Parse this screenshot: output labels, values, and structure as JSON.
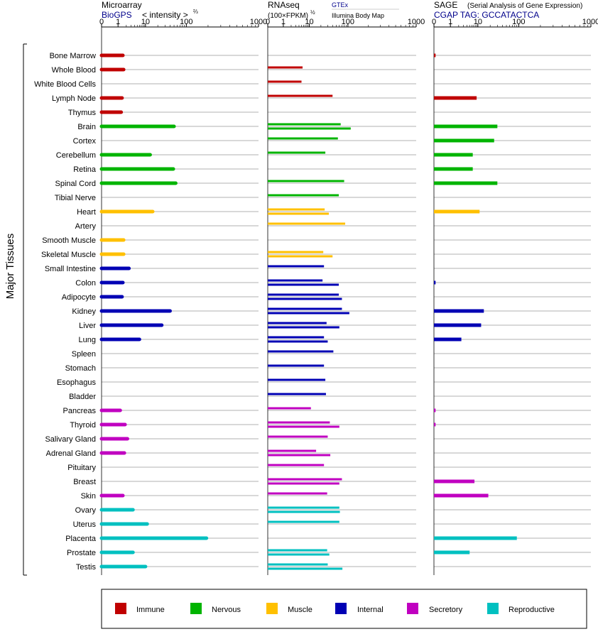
{
  "chart_data": {
    "type": "bar",
    "orientation": "horizontal",
    "y_axis_label": "Major Tissues",
    "scale": "log",
    "ticks": [
      0,
      1,
      10,
      100,
      1000
    ],
    "tissues": [
      "Bone Marrow",
      "Whole Blood",
      "White Blood Cells",
      "Lymph Node",
      "Thymus",
      "Brain",
      "Cortex",
      "Cerebellum",
      "Retina",
      "Spinal Cord",
      "Tibial Nerve",
      "Heart",
      "Artery",
      "Smooth Muscle",
      "Skeletal Muscle",
      "Small Intestine",
      "Colon",
      "Adipocyte",
      "Kidney",
      "Liver",
      "Lung",
      "Spleen",
      "Stomach",
      "Esophagus",
      "Bladder",
      "Pancreas",
      "Thyroid",
      "Salivary Gland",
      "Adrenal Gland",
      "Pituitary",
      "Breast",
      "Skin",
      "Ovary",
      "Uterus",
      "Placenta",
      "Prostate",
      "Testis"
    ],
    "tissue_groups": [
      "Immune",
      "Immune",
      "Immune",
      "Immune",
      "Immune",
      "Nervous",
      "Nervous",
      "Nervous",
      "Nervous",
      "Nervous",
      "Nervous",
      "Muscle",
      "Muscle",
      "Muscle",
      "Muscle",
      "Internal",
      "Internal",
      "Internal",
      "Internal",
      "Internal",
      "Internal",
      "Internal",
      "Internal",
      "Internal",
      "Internal",
      "Secretory",
      "Secretory",
      "Secretory",
      "Secretory",
      "Secretory",
      "Secretory",
      "Secretory",
      "Reproductive",
      "Reproductive",
      "Reproductive",
      "Reproductive",
      "Reproductive"
    ],
    "group_colors": {
      "Immune": "#c00000",
      "Nervous": "#00b400",
      "Muscle": "#ffc000",
      "Internal": "#0000b4",
      "Secretory": "#c000c0",
      "Reproductive": "#00c0c0"
    },
    "panels": [
      {
        "title": "Microarray",
        "subtitle": "BioGPS",
        "unit": "< intensity >",
        "unit_exp": "⅔",
        "values": [
          1.5,
          1.6,
          null,
          1.4,
          1.3,
          50,
          null,
          13,
          48,
          55,
          null,
          15,
          null,
          1.6,
          1.6,
          2.5,
          1.5,
          1.4,
          40,
          25,
          6,
          null,
          null,
          null,
          null,
          1.2,
          1.8,
          2.2,
          1.7,
          null,
          null,
          1.5,
          3.5,
          11,
          190,
          3.5,
          10
        ]
      },
      {
        "title": "RNAseq",
        "unit": "(100×FPKM)",
        "unit_exp": "½",
        "sources": [
          "GTEx",
          "Illumina Body Map"
        ],
        "values_gtex": [
          5.5,
          null,
          5,
          null,
          null,
          65,
          null,
          null,
          null,
          null,
          null,
          null,
          null,
          null,
          null,
          null,
          null,
          null,
          null,
          null,
          null,
          null,
          null,
          null,
          null,
          null,
          null,
          null,
          null,
          null,
          null,
          null,
          null,
          null,
          null,
          null,
          null
        ],
        "values": [
          null,
          5.5,
          4.5,
          40,
          null,
          100,
          55,
          25,
          null,
          75,
          58,
          null,
          75,
          null,
          null,
          null,
          null,
          null,
          null,
          null,
          null,
          null,
          null,
          null,
          null,
          null,
          null,
          null,
          null,
          null,
          null,
          null,
          null,
          null,
          null,
          null,
          null
        ],
        "values_bodymap": [
          null,
          null,
          null,
          null,
          null,
          55,
          null,
          null,
          null,
          null,
          null,
          null,
          null,
          null,
          null,
          null,
          null,
          null,
          null,
          null,
          null,
          null,
          null,
          null,
          null,
          null,
          null,
          null,
          null,
          null,
          null,
          null,
          null,
          null,
          null,
          null,
          null
        ],
        "pairs": [
          [
            null,
            null
          ],
          [
            5.5,
            null
          ],
          [
            5,
            null
          ],
          [
            40,
            null
          ],
          [
            null,
            null
          ],
          [
            65,
            110
          ],
          [
            55,
            null
          ],
          [
            26,
            null
          ],
          [
            null,
            null
          ],
          [
            80,
            null
          ],
          [
            58,
            null
          ],
          [
            25,
            32
          ],
          [
            85,
            null
          ],
          [
            null,
            null
          ],
          [
            23,
            40
          ],
          [
            24,
            null
          ],
          [
            22,
            58
          ],
          [
            58,
            70
          ],
          [
            70,
            105
          ],
          [
            28,
            60
          ],
          [
            24,
            30
          ],
          [
            42,
            null
          ],
          [
            24,
            null
          ],
          [
            26,
            null
          ],
          [
            27,
            null
          ],
          [
            11,
            null
          ],
          [
            34,
            60
          ],
          [
            30,
            null
          ],
          [
            15,
            35
          ],
          [
            24,
            null
          ],
          [
            70,
            60
          ],
          [
            29,
            null
          ],
          [
            60,
            62
          ],
          [
            60,
            null
          ],
          [
            null,
            null
          ],
          [
            29,
            33
          ],
          [
            30,
            72
          ]
        ]
      },
      {
        "title": "SAGE",
        "subtitle_note": "(Serial Analysis of Gene Expression)",
        "subtitle": "CGAP TAG: GCCATACTCA",
        "values": [
          0.1,
          null,
          null,
          9,
          null,
          30,
          25,
          6.5,
          6.5,
          30,
          null,
          11,
          null,
          null,
          null,
          null,
          0.1,
          null,
          14,
          12,
          2.5,
          null,
          null,
          null,
          null,
          0.1,
          0.1,
          null,
          null,
          null,
          7.5,
          18,
          null,
          null,
          90,
          5,
          null
        ]
      }
    ],
    "legend": [
      "Immune",
      "Nervous",
      "Muscle",
      "Internal",
      "Secretory",
      "Reproductive"
    ]
  }
}
